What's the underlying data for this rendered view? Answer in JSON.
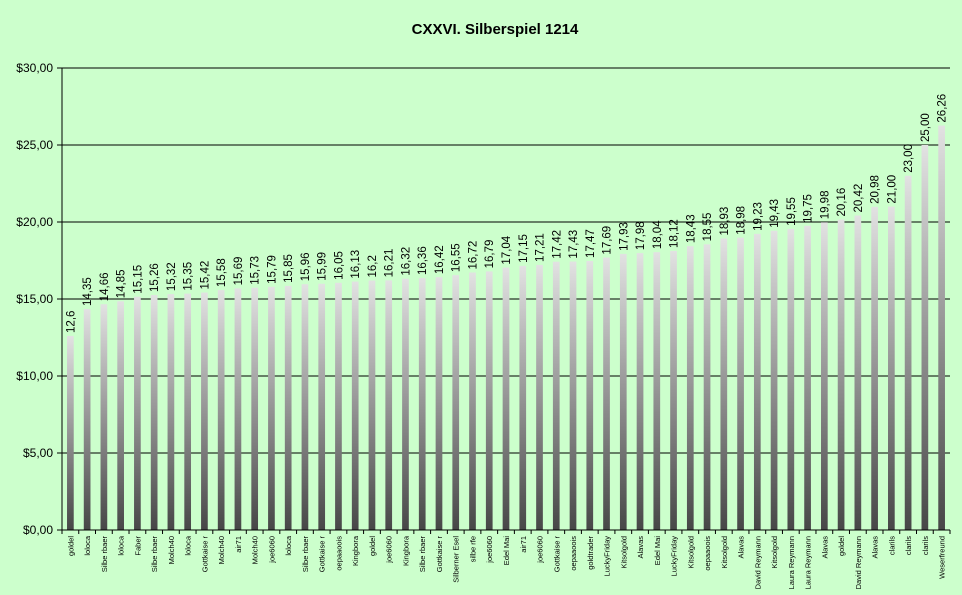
{
  "chart_data": {
    "type": "bar",
    "title": "CXXVI. Silberspiel 1214",
    "xlabel": "",
    "ylabel": "",
    "ylim": [
      0,
      30
    ],
    "yticks": [
      "$0,00",
      "$5,00",
      "$10,00",
      "$15,00",
      "$20,00",
      "$25,00",
      "$30,00"
    ],
    "ytick_values": [
      0,
      5,
      10,
      15,
      20,
      25,
      30
    ],
    "grid": true,
    "legend": "none",
    "categories": [
      "goldel",
      "loloca",
      "Silbe rbaer",
      "loloca",
      "Faber",
      "Silbe rbaer",
      "Molch40",
      "loloca",
      "Gottkaise r",
      "Molch40",
      "air71",
      "Molch40",
      "joe6060",
      "loloca",
      "Silbe rbaer",
      "Gottkaise r",
      "oepaaoois",
      "Kingbora",
      "goldel",
      "joe6060",
      "Kingbora",
      "Silbe rbaer",
      "Gottkaise r",
      "Silberner Esel",
      "silbe rfe",
      "joe6060",
      "Edel Mai",
      "air71",
      "joe6060",
      "Gottkaise r",
      "oepaaoois",
      "goldtrader",
      "LuckyFriday",
      "Kitsolgold",
      "Alavas",
      "Edel Mai",
      "LuckyFriday",
      "Kitsolgold",
      "oepaaoois",
      "Kitsolgold",
      "Alavas",
      "David Reymann",
      "Kitsolgold",
      "Laura Reymann",
      "Laura Reymann",
      "Alavas",
      "goldel",
      "David Reymann",
      "Alavas",
      "clarils",
      "clarils",
      "clarils",
      "Weserfreund"
    ],
    "values": [
      12.6,
      14.35,
      14.66,
      14.85,
      15.15,
      15.26,
      15.32,
      15.35,
      15.42,
      15.58,
      15.69,
      15.73,
      15.79,
      15.85,
      15.96,
      15.99,
      16.05,
      16.13,
      16.2,
      16.21,
      16.32,
      16.36,
      16.42,
      16.55,
      16.72,
      16.79,
      17.04,
      17.15,
      17.21,
      17.42,
      17.43,
      17.47,
      17.69,
      17.93,
      17.98,
      18.04,
      18.12,
      18.43,
      18.55,
      18.93,
      18.98,
      19.23,
      19.43,
      19.55,
      19.75,
      19.98,
      20.16,
      20.42,
      20.98,
      21.0,
      23.0,
      25.0,
      26.26
    ],
    "data_labels": [
      "12,6",
      "14,35",
      "14,66",
      "14,85",
      "15,15",
      "15,26",
      "15,32",
      "15,35",
      "15,42",
      "15,58",
      "15,69",
      "15,73",
      "15,79",
      "15,85",
      "15,96",
      "15,99",
      "16,05",
      "16,13",
      "16,2",
      "16,21",
      "16,32",
      "16,36",
      "16,42",
      "16,55",
      "16,72",
      "16,79",
      "17,04",
      "17,15",
      "17,21",
      "17,42",
      "17,43",
      "17,47",
      "17,69",
      "17,93",
      "17,98",
      "18,04",
      "18,12",
      "18,43",
      "18,55",
      "18,93",
      "18,98",
      "19,23",
      "19,43",
      "19,55",
      "19,75",
      "19,98",
      "20,16",
      "20,42",
      "20,98",
      "21,00",
      "23,00",
      "25,00",
      "26,26"
    ],
    "colors": {
      "background": "#ccffcc",
      "bar_light": "#e0e0e0",
      "bar_dark": "#4a4a4a",
      "axis": "#000000"
    }
  }
}
